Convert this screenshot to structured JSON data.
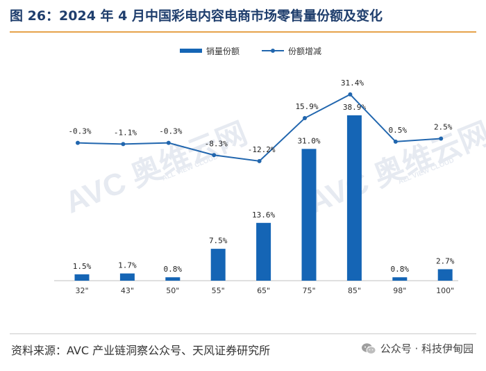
{
  "title": "图 26：2024 年 4 月中国彩电内容电商市场零售量份额及变化",
  "source": "资料来源：AVC 产业链洞察公众号、天风证券研究所",
  "watermark": "公众号 · 科技伊甸园",
  "watermark_logo": {
    "text": "AVC 奥维云网",
    "sub": "ALL VIEW CLOUD",
    "icon": "avc-logo"
  },
  "colors": {
    "bar": "#1565b5",
    "line": "#2166ae",
    "title": "#1f3e6d",
    "rule": "#e6a24a"
  },
  "chart_data": {
    "type": "bar+line",
    "categories": [
      "32\"",
      "43\"",
      "50\"",
      "55\"",
      "65\"",
      "75\"",
      "85\"",
      "98\"",
      "100\""
    ],
    "series": [
      {
        "name": "销量份额",
        "type": "bar",
        "values": [
          1.5,
          1.7,
          0.8,
          7.5,
          13.6,
          31.0,
          38.9,
          0.8,
          2.7
        ],
        "labels": [
          "1.5%",
          "1.7%",
          "0.8%",
          "7.5%",
          "13.6%",
          "31.0%",
          "38.9%",
          "0.8%",
          "2.7%"
        ]
      },
      {
        "name": "份额增减",
        "type": "line",
        "values": [
          -0.3,
          -1.1,
          -0.3,
          -8.3,
          -12.2,
          15.9,
          31.4,
          0.5,
          2.5
        ],
        "labels": [
          "-0.3%",
          "-1.1%",
          "-0.3%",
          "-8.3%",
          "-12.2%",
          "15.9%",
          "31.4%",
          "0.5%",
          "2.5%"
        ]
      }
    ],
    "bar_ylim": [
      0,
      40
    ],
    "line_ylim": [
      -20,
      40
    ],
    "legend_position": "top-center",
    "grid": false
  }
}
